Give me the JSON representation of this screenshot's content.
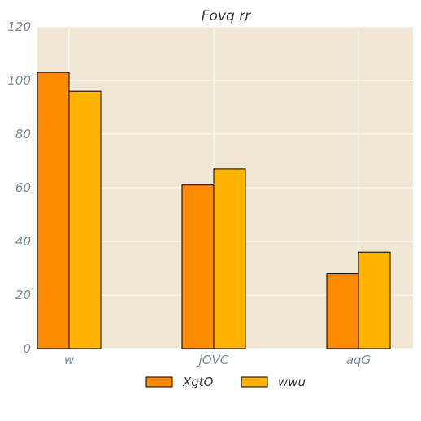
{
  "chart_data": {
    "type": "bar",
    "title": "Fovq  rr",
    "xlabel": "",
    "ylabel": "",
    "categories": [
      "w",
      "jOVC",
      "aqG"
    ],
    "series": [
      {
        "name": "XgtO",
        "values": [
          103,
          61,
          28
        ],
        "color": "#ff8c00"
      },
      {
        "name": "wwu",
        "values": [
          96,
          67,
          36
        ],
        "color": "#ffb300"
      }
    ],
    "ylim": [
      0,
      120
    ],
    "yticks": [
      0,
      20,
      40,
      60,
      80,
      100,
      120
    ],
    "grid": true,
    "legend_position": "bottom-center",
    "colors": {
      "plot_background": "#efe7d3",
      "grid": "#ffffff",
      "edge": "#000000"
    }
  }
}
